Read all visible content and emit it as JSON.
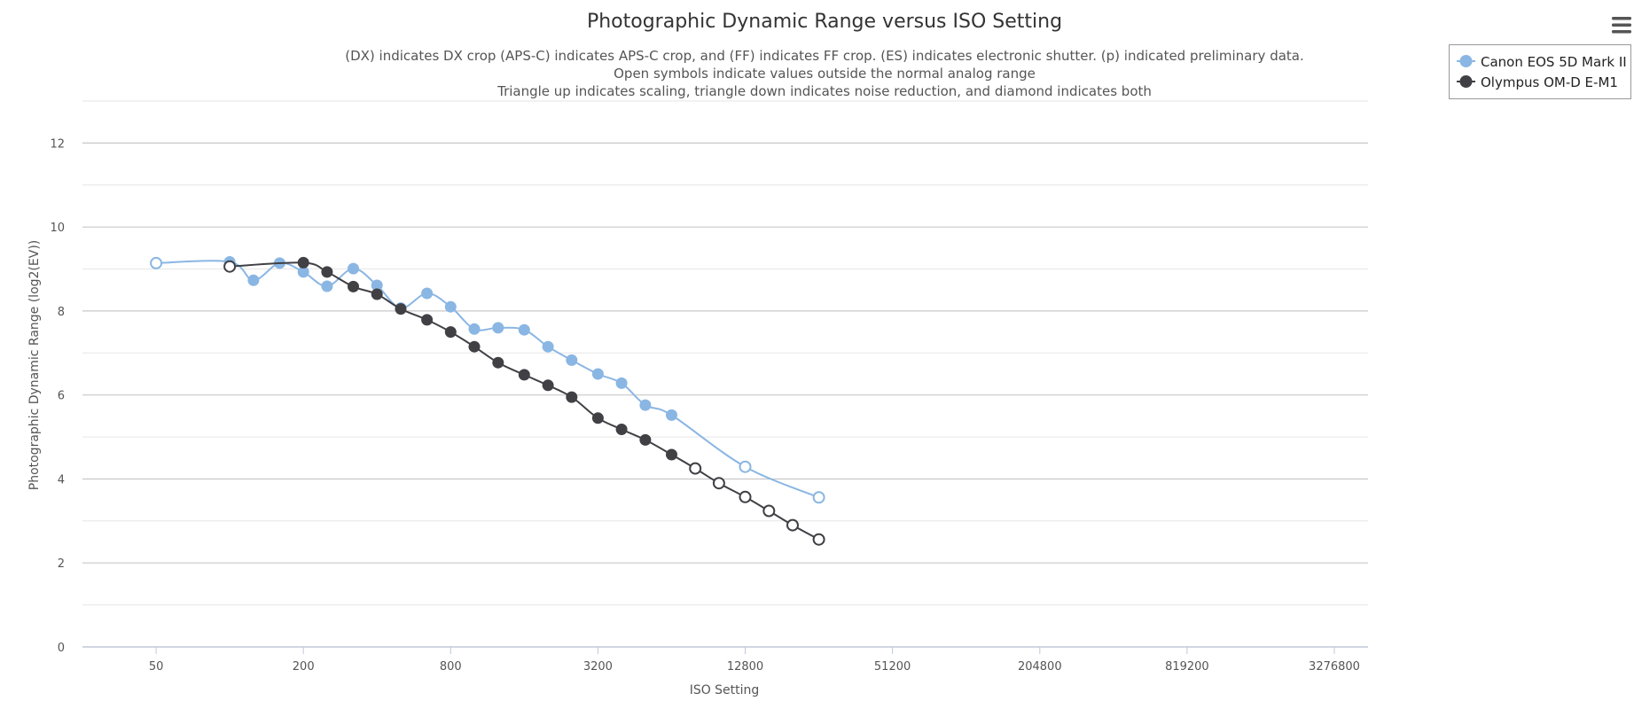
{
  "chart_data": {
    "type": "line",
    "title": "Photographic Dynamic Range versus ISO Setting",
    "subtitle": [
      "(DX) indicates DX crop (APS-C) indicates APS-C crop, and (FF) indicates FF crop. (ES) indicates electronic shutter. (p) indicated preliminary data.",
      "Open symbols indicate values outside the normal analog range",
      "Triangle up indicates scaling, triangle down indicates noise reduction, and diamond indicates both"
    ],
    "xlabel": "ISO Setting",
    "ylabel": "Photographic Dynamic Range (log2(EV))",
    "x_scale": "log2",
    "x_ticks": [
      50,
      200,
      800,
      3200,
      12800,
      51200,
      204800,
      819200,
      3276800
    ],
    "x_tick_labels": [
      "50",
      "200",
      "800",
      "3200",
      "12800",
      "51200",
      "204800",
      "819200",
      "3276800"
    ],
    "xlim": [
      25,
      4500000
    ],
    "y_ticks": [
      0,
      2,
      4,
      6,
      8,
      10,
      12
    ],
    "y_tick_labels": [
      "0",
      "2",
      "4",
      "6",
      "8",
      "10",
      "12"
    ],
    "ylim": [
      0,
      13
    ],
    "grid": true,
    "legend_position": "top-right",
    "series": [
      {
        "name": "Canon EOS 5D Mark II",
        "color": "#8ab6e3",
        "points": [
          {
            "x": 50,
            "y": 9.14,
            "open": true
          },
          {
            "x": 100,
            "y": 9.17,
            "open": false
          },
          {
            "x": 125,
            "y": 8.73,
            "open": false
          },
          {
            "x": 160,
            "y": 9.14,
            "open": false
          },
          {
            "x": 200,
            "y": 8.93,
            "open": false
          },
          {
            "x": 250,
            "y": 8.59,
            "open": false
          },
          {
            "x": 320,
            "y": 9.01,
            "open": false
          },
          {
            "x": 400,
            "y": 8.61,
            "open": false
          },
          {
            "x": 500,
            "y": 8.07,
            "open": false
          },
          {
            "x": 640,
            "y": 8.42,
            "open": false
          },
          {
            "x": 800,
            "y": 8.1,
            "open": false
          },
          {
            "x": 1000,
            "y": 7.57,
            "open": false
          },
          {
            "x": 1250,
            "y": 7.6,
            "open": false
          },
          {
            "x": 1600,
            "y": 7.55,
            "open": false
          },
          {
            "x": 2000,
            "y": 7.15,
            "open": false
          },
          {
            "x": 2500,
            "y": 6.83,
            "open": false
          },
          {
            "x": 3200,
            "y": 6.5,
            "open": false
          },
          {
            "x": 4000,
            "y": 6.28,
            "open": false
          },
          {
            "x": 5000,
            "y": 5.76,
            "open": false
          },
          {
            "x": 6400,
            "y": 5.52,
            "open": false
          },
          {
            "x": 12800,
            "y": 4.29,
            "open": true
          },
          {
            "x": 25600,
            "y": 3.56,
            "open": true
          }
        ]
      },
      {
        "name": "Olympus OM-D E-M1",
        "color": "#404045",
        "points": [
          {
            "x": 100,
            "y": 9.06,
            "open": true
          },
          {
            "x": 200,
            "y": 9.15,
            "open": false
          },
          {
            "x": 250,
            "y": 8.93,
            "open": false
          },
          {
            "x": 320,
            "y": 8.58,
            "open": false
          },
          {
            "x": 400,
            "y": 8.4,
            "open": false
          },
          {
            "x": 500,
            "y": 8.05,
            "open": false
          },
          {
            "x": 640,
            "y": 7.79,
            "open": false
          },
          {
            "x": 800,
            "y": 7.5,
            "open": false
          },
          {
            "x": 1000,
            "y": 7.15,
            "open": false
          },
          {
            "x": 1250,
            "y": 6.77,
            "open": false
          },
          {
            "x": 1600,
            "y": 6.48,
            "open": false
          },
          {
            "x": 2000,
            "y": 6.23,
            "open": false
          },
          {
            "x": 2500,
            "y": 5.95,
            "open": false
          },
          {
            "x": 3200,
            "y": 5.45,
            "open": false
          },
          {
            "x": 4000,
            "y": 5.18,
            "open": false
          },
          {
            "x": 5000,
            "y": 4.93,
            "open": false
          },
          {
            "x": 6400,
            "y": 4.58,
            "open": false
          },
          {
            "x": 8000,
            "y": 4.25,
            "open": true
          },
          {
            "x": 10000,
            "y": 3.9,
            "open": true
          },
          {
            "x": 12800,
            "y": 3.57,
            "open": true
          },
          {
            "x": 16000,
            "y": 3.24,
            "open": true
          },
          {
            "x": 20000,
            "y": 2.9,
            "open": true
          },
          {
            "x": 25600,
            "y": 2.56,
            "open": true
          }
        ]
      }
    ]
  },
  "menu": {
    "icon": "hamburger-menu-icon"
  }
}
